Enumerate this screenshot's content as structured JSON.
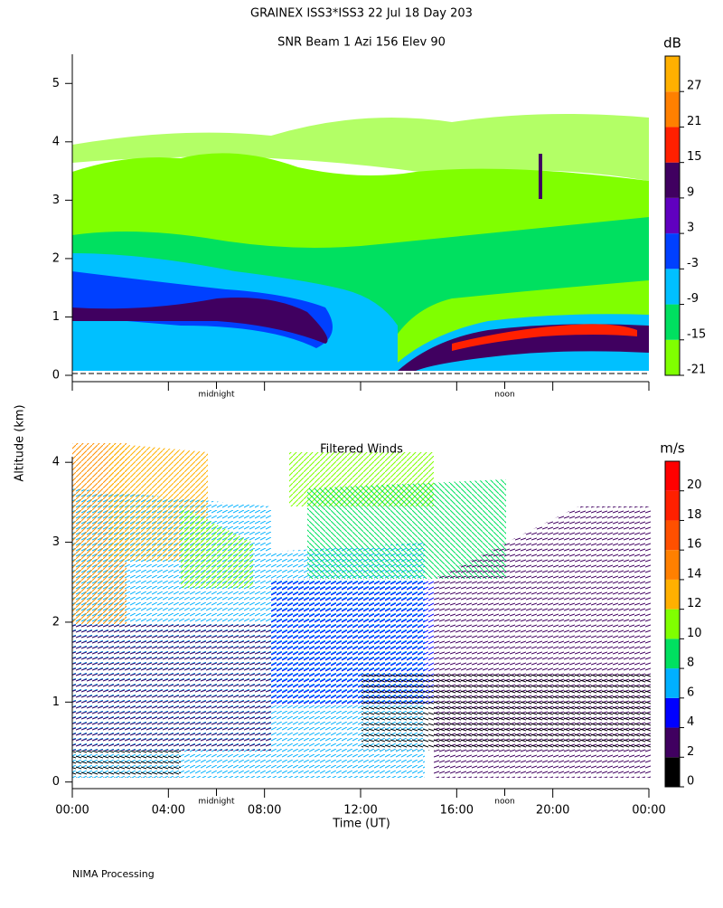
{
  "title": "GRAINEX ISS3*ISS3  22 Jul 18 Day 203",
  "ylabel": "Altitude (km)",
  "footer": "NIMA Processing",
  "chart_data": [
    {
      "type": "heatmap",
      "title": "SNR Beam 1 Azi 156 Elev 90",
      "xlim": [
        0,
        24
      ],
      "ylim": [
        0,
        5.5
      ],
      "yticks": [
        0,
        1,
        2,
        3,
        4,
        5
      ],
      "xticks": [
        0,
        4,
        8,
        12,
        16,
        20,
        24
      ],
      "annotations": [
        {
          "text": "midnight",
          "x": 6
        },
        {
          "text": "noon",
          "x": 18
        }
      ],
      "colorbar": {
        "label": "dB",
        "lim": [
          -21,
          33
        ],
        "ticks": [
          -21,
          -15,
          -9,
          -3,
          3,
          9,
          15,
          21,
          27
        ],
        "colors": [
          "#80ff00",
          "#00e060",
          "#00c0ff",
          "#0040ff",
          "#6000c0",
          "#400060",
          "#ff2000",
          "#ff8000",
          "#ffb000"
        ]
      }
    },
    {
      "type": "barbs",
      "title": "Filtered Winds",
      "xlabel": "Time (UT)",
      "xlim": [
        0,
        24
      ],
      "ylim": [
        -0.06,
        4.07
      ],
      "yticks": [
        0,
        1,
        2,
        3,
        4
      ],
      "xticks": [
        {
          "value": 0,
          "label": "00:00"
        },
        {
          "value": 4,
          "label": "04:00"
        },
        {
          "value": 8,
          "label": "08:00"
        },
        {
          "value": 12,
          "label": "12:00"
        },
        {
          "value": 16,
          "label": "16:00"
        },
        {
          "value": 20,
          "label": "20:00"
        },
        {
          "value": 24,
          "label": "00:00"
        }
      ],
      "annotations": [
        {
          "text": "midnight",
          "x": 6
        },
        {
          "text": "noon",
          "x": 18
        }
      ],
      "colorbar": {
        "label": "m/s",
        "lim": [
          0,
          22
        ],
        "ticks": [
          0,
          2,
          4,
          6,
          8,
          10,
          12,
          14,
          16,
          18,
          20
        ],
        "colors": [
          "#000000",
          "#400060",
          "#0000ff",
          "#00b0ff",
          "#00e060",
          "#80ff00",
          "#ffb000",
          "#ff8000",
          "#ff5000",
          "#ff2000",
          "#ff0000"
        ]
      }
    }
  ]
}
